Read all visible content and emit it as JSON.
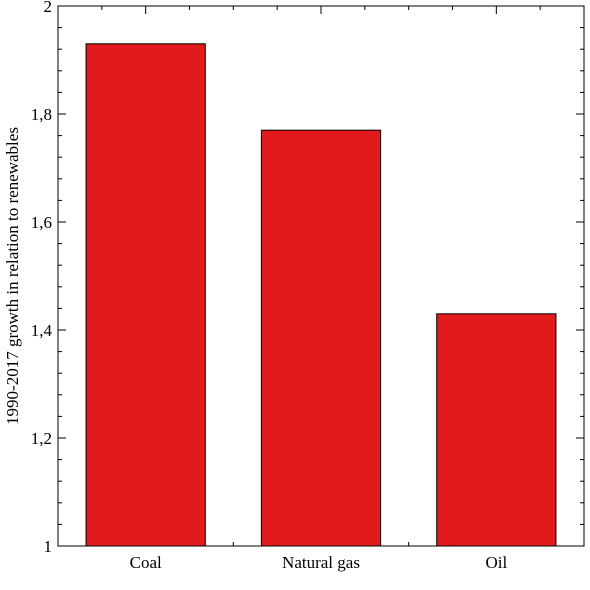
{
  "chart_data": {
    "type": "bar",
    "categories": [
      "Coal",
      "Natural gas",
      "Oil"
    ],
    "values": [
      1.93,
      1.77,
      1.43
    ],
    "title": "",
    "xlabel": "",
    "ylabel": "1990-2017 growth in relation to renewables",
    "ylim": [
      1,
      2
    ],
    "yticks": [
      {
        "value": 1,
        "label": "1"
      },
      {
        "value": 1.2,
        "label": "1,2"
      },
      {
        "value": 1.4,
        "label": "1,4"
      },
      {
        "value": 1.6,
        "label": "1,6"
      },
      {
        "value": 1.8,
        "label": "1,8"
      },
      {
        "value": 2,
        "label": "2"
      }
    ],
    "grid": false,
    "legend": "none",
    "bar_color": "#e31a1c"
  }
}
